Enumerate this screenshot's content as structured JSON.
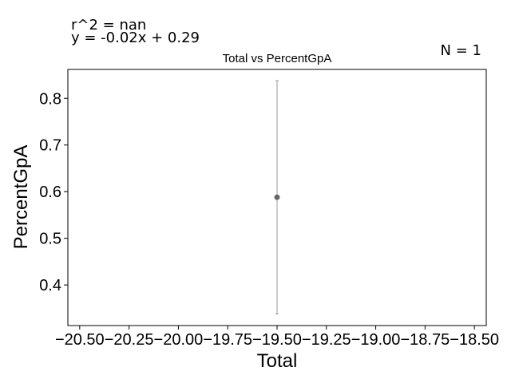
{
  "annotations": {
    "r2": "r^2 = nan",
    "fit": "y = -0.02x + 0.29",
    "n": "N = 1"
  },
  "chart_data": {
    "type": "scatter",
    "title": "Total vs PercentGpA",
    "xlabel": "Total",
    "ylabel": "PercentGpA",
    "xlim": [
      -20.56,
      -18.44
    ],
    "ylim": [
      0.313,
      0.862
    ],
    "xticks": [
      -20.5,
      -20.25,
      -20.0,
      -19.75,
      -19.5,
      -19.25,
      -19.0,
      -18.75,
      -18.5
    ],
    "xtick_labels": [
      "−20.50",
      "−20.25",
      "−20.00",
      "−19.75",
      "−19.50",
      "−19.25",
      "−19.00",
      "−18.75",
      "−18.50"
    ],
    "yticks": [
      0.4,
      0.5,
      0.6,
      0.7,
      0.8
    ],
    "ytick_labels": [
      "0.4",
      "0.5",
      "0.6",
      "0.7",
      "0.8"
    ],
    "points": [
      {
        "x": -19.5,
        "y": 0.588,
        "err_low": 0.338,
        "err_high": 0.838
      }
    ],
    "colors": {
      "point": "#666666",
      "errorbar": "#999999",
      "axes": "#000000"
    },
    "grid": false
  }
}
